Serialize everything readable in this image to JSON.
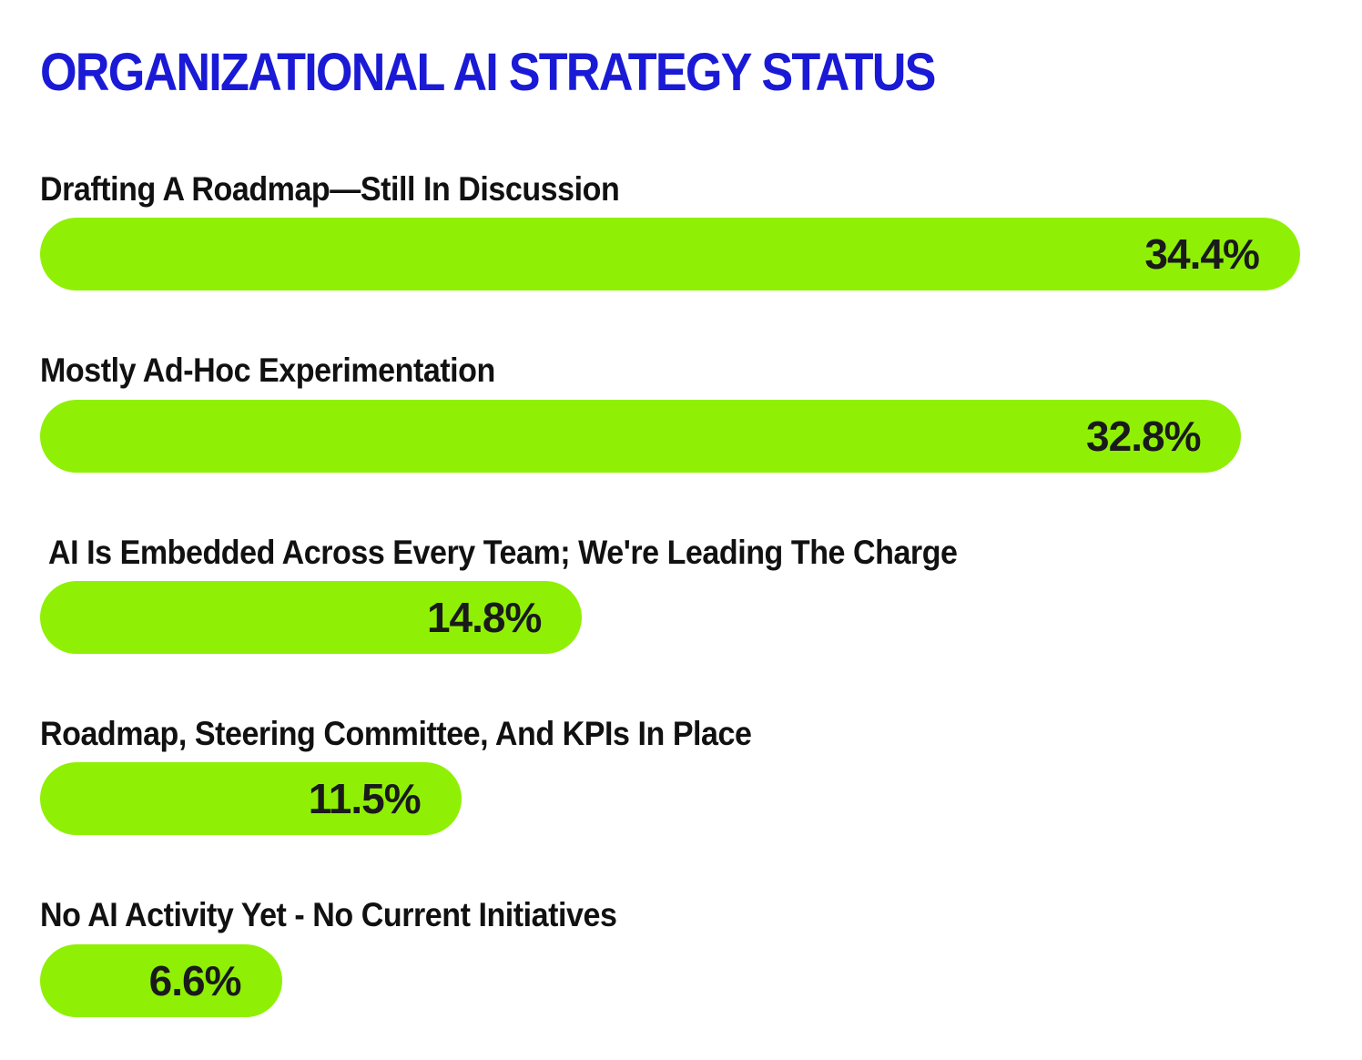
{
  "page": {
    "background_color": "#ffffff"
  },
  "chart_data": {
    "type": "bar",
    "orientation": "horizontal",
    "title": "ORGANIZATIONAL AI STRATEGY STATUS",
    "title_color": "#1a1ad6",
    "bar_color": "#8ff005",
    "category_label_color": "#111111",
    "value_label_color": "#1a1a1a",
    "xlim": [
      0,
      35
    ],
    "grid": false,
    "legend": false,
    "value_labels_inside_bars": true,
    "categories": [
      "Drafting A Roadmap—Still In Discussion",
      "Mostly Ad-Hoc Experimentation",
      " AI Is Embedded Across Every Team; We're Leading The Charge",
      "Roadmap, Steering Committee, And KPIs In Place",
      "No AI Activity Yet - No Current Initiatives"
    ],
    "values": [
      34.4,
      32.8,
      14.8,
      11.5,
      6.6
    ],
    "value_labels": [
      "34.4%",
      "32.8%",
      "14.8%",
      "11.5%",
      "6.6%"
    ]
  }
}
